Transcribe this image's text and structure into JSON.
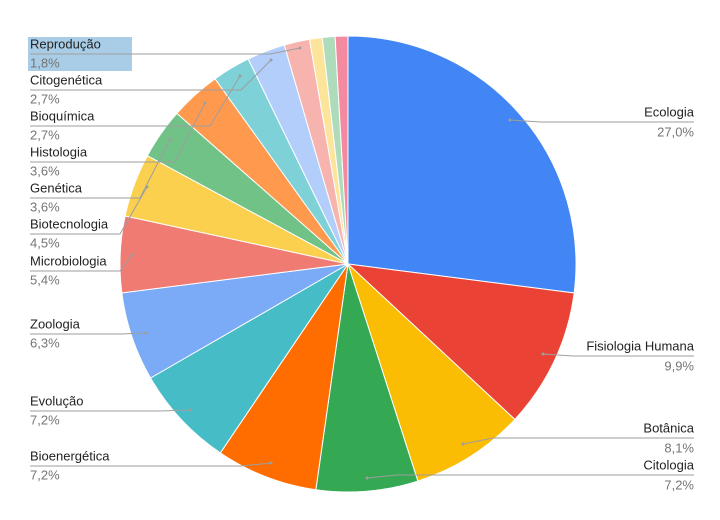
{
  "chart_data": {
    "type": "pie",
    "categories": [
      "Ecologia",
      "Fisiologia Humana",
      "Botânica",
      "Citologia",
      "Bioenergética",
      "Evolução",
      "Zoologia",
      "Microbiologia",
      "Biotecnologia",
      "Genética",
      "Histologia",
      "Bioquímica",
      "Citogenética",
      "Reprodução",
      null,
      null,
      null
    ],
    "values": [
      27.0,
      9.9,
      8.1,
      7.2,
      7.2,
      7.2,
      6.3,
      5.4,
      4.5,
      3.6,
      3.6,
      2.7,
      2.7,
      1.8,
      0.9,
      0.9,
      0.9
    ],
    "value_labels": [
      "27,0%",
      "9,9%",
      "8,1%",
      "7,2%",
      "7,2%",
      "7,2%",
      "6,3%",
      "5,4%",
      "4,5%",
      "3,6%",
      "3,6%",
      "2,7%",
      "2,7%",
      "1,8%",
      null,
      null,
      null
    ],
    "colors": [
      "#4285f4",
      "#ea4335",
      "#fbbc04",
      "#34a853",
      "#ff6d01",
      "#46bdc6",
      "#7baaf7",
      "#f07b72",
      "#fcd04f",
      "#71c287",
      "#ff994d",
      "#7ed1d7",
      "#b3cefb",
      "#f7b4ae",
      "#fde49b",
      "#aedcba",
      "#f48aa0"
    ]
  }
}
